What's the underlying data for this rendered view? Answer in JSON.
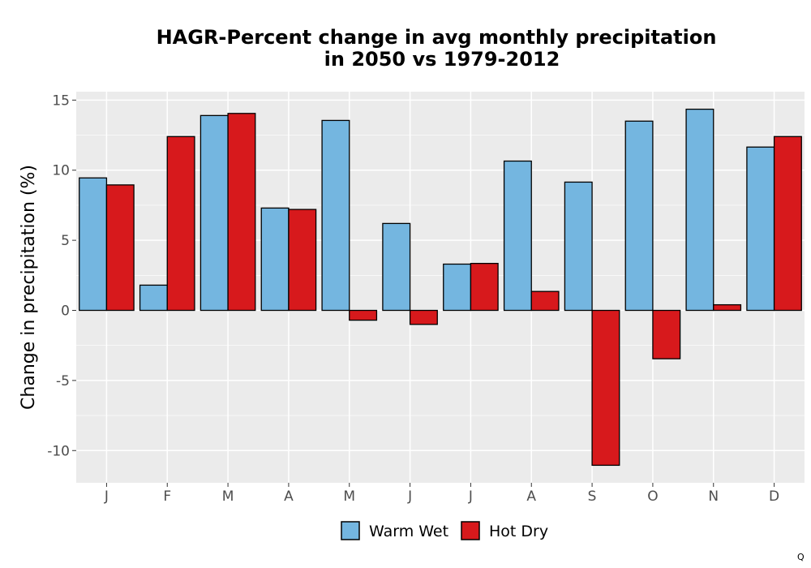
{
  "chart_data": {
    "type": "bar",
    "title": [
      "HAGR-Percent change in avg monthly precipitation",
      "in 2050 vs 1979-2012"
    ],
    "xlabel": "",
    "ylabel": "Change in precipitation (%)",
    "ylim": [
      -12.3,
      15.6
    ],
    "yticks": [
      15,
      10,
      5,
      0,
      -5,
      -10
    ],
    "ytick_labels": [
      "15",
      "10",
      "5",
      "0",
      "-5",
      "-10"
    ],
    "categories": [
      "J",
      "F",
      "M",
      "A",
      "M",
      "J",
      "J",
      "A",
      "S",
      "O",
      "N",
      "D"
    ],
    "series": [
      {
        "name": "Warm Wet",
        "color": "#74b6e0",
        "values": [
          9.45,
          1.8,
          13.9,
          7.3,
          13.55,
          6.2,
          3.3,
          10.65,
          9.15,
          13.5,
          14.35,
          11.65
        ]
      },
      {
        "name": "Hot Dry",
        "color": "#d7191c",
        "values": [
          8.95,
          12.4,
          14.05,
          7.2,
          -0.7,
          -1.0,
          3.35,
          1.35,
          -11.05,
          -3.45,
          0.4,
          12.4
        ]
      }
    ],
    "grid": true,
    "panel_background": "#ebebeb",
    "grid_color": "#ffffff",
    "bar_outline": "#000000",
    "legend_position": "bottom",
    "legend_items": [
      "Warm Wet",
      "Hot Dry"
    ],
    "corner_mark": "Q"
  }
}
